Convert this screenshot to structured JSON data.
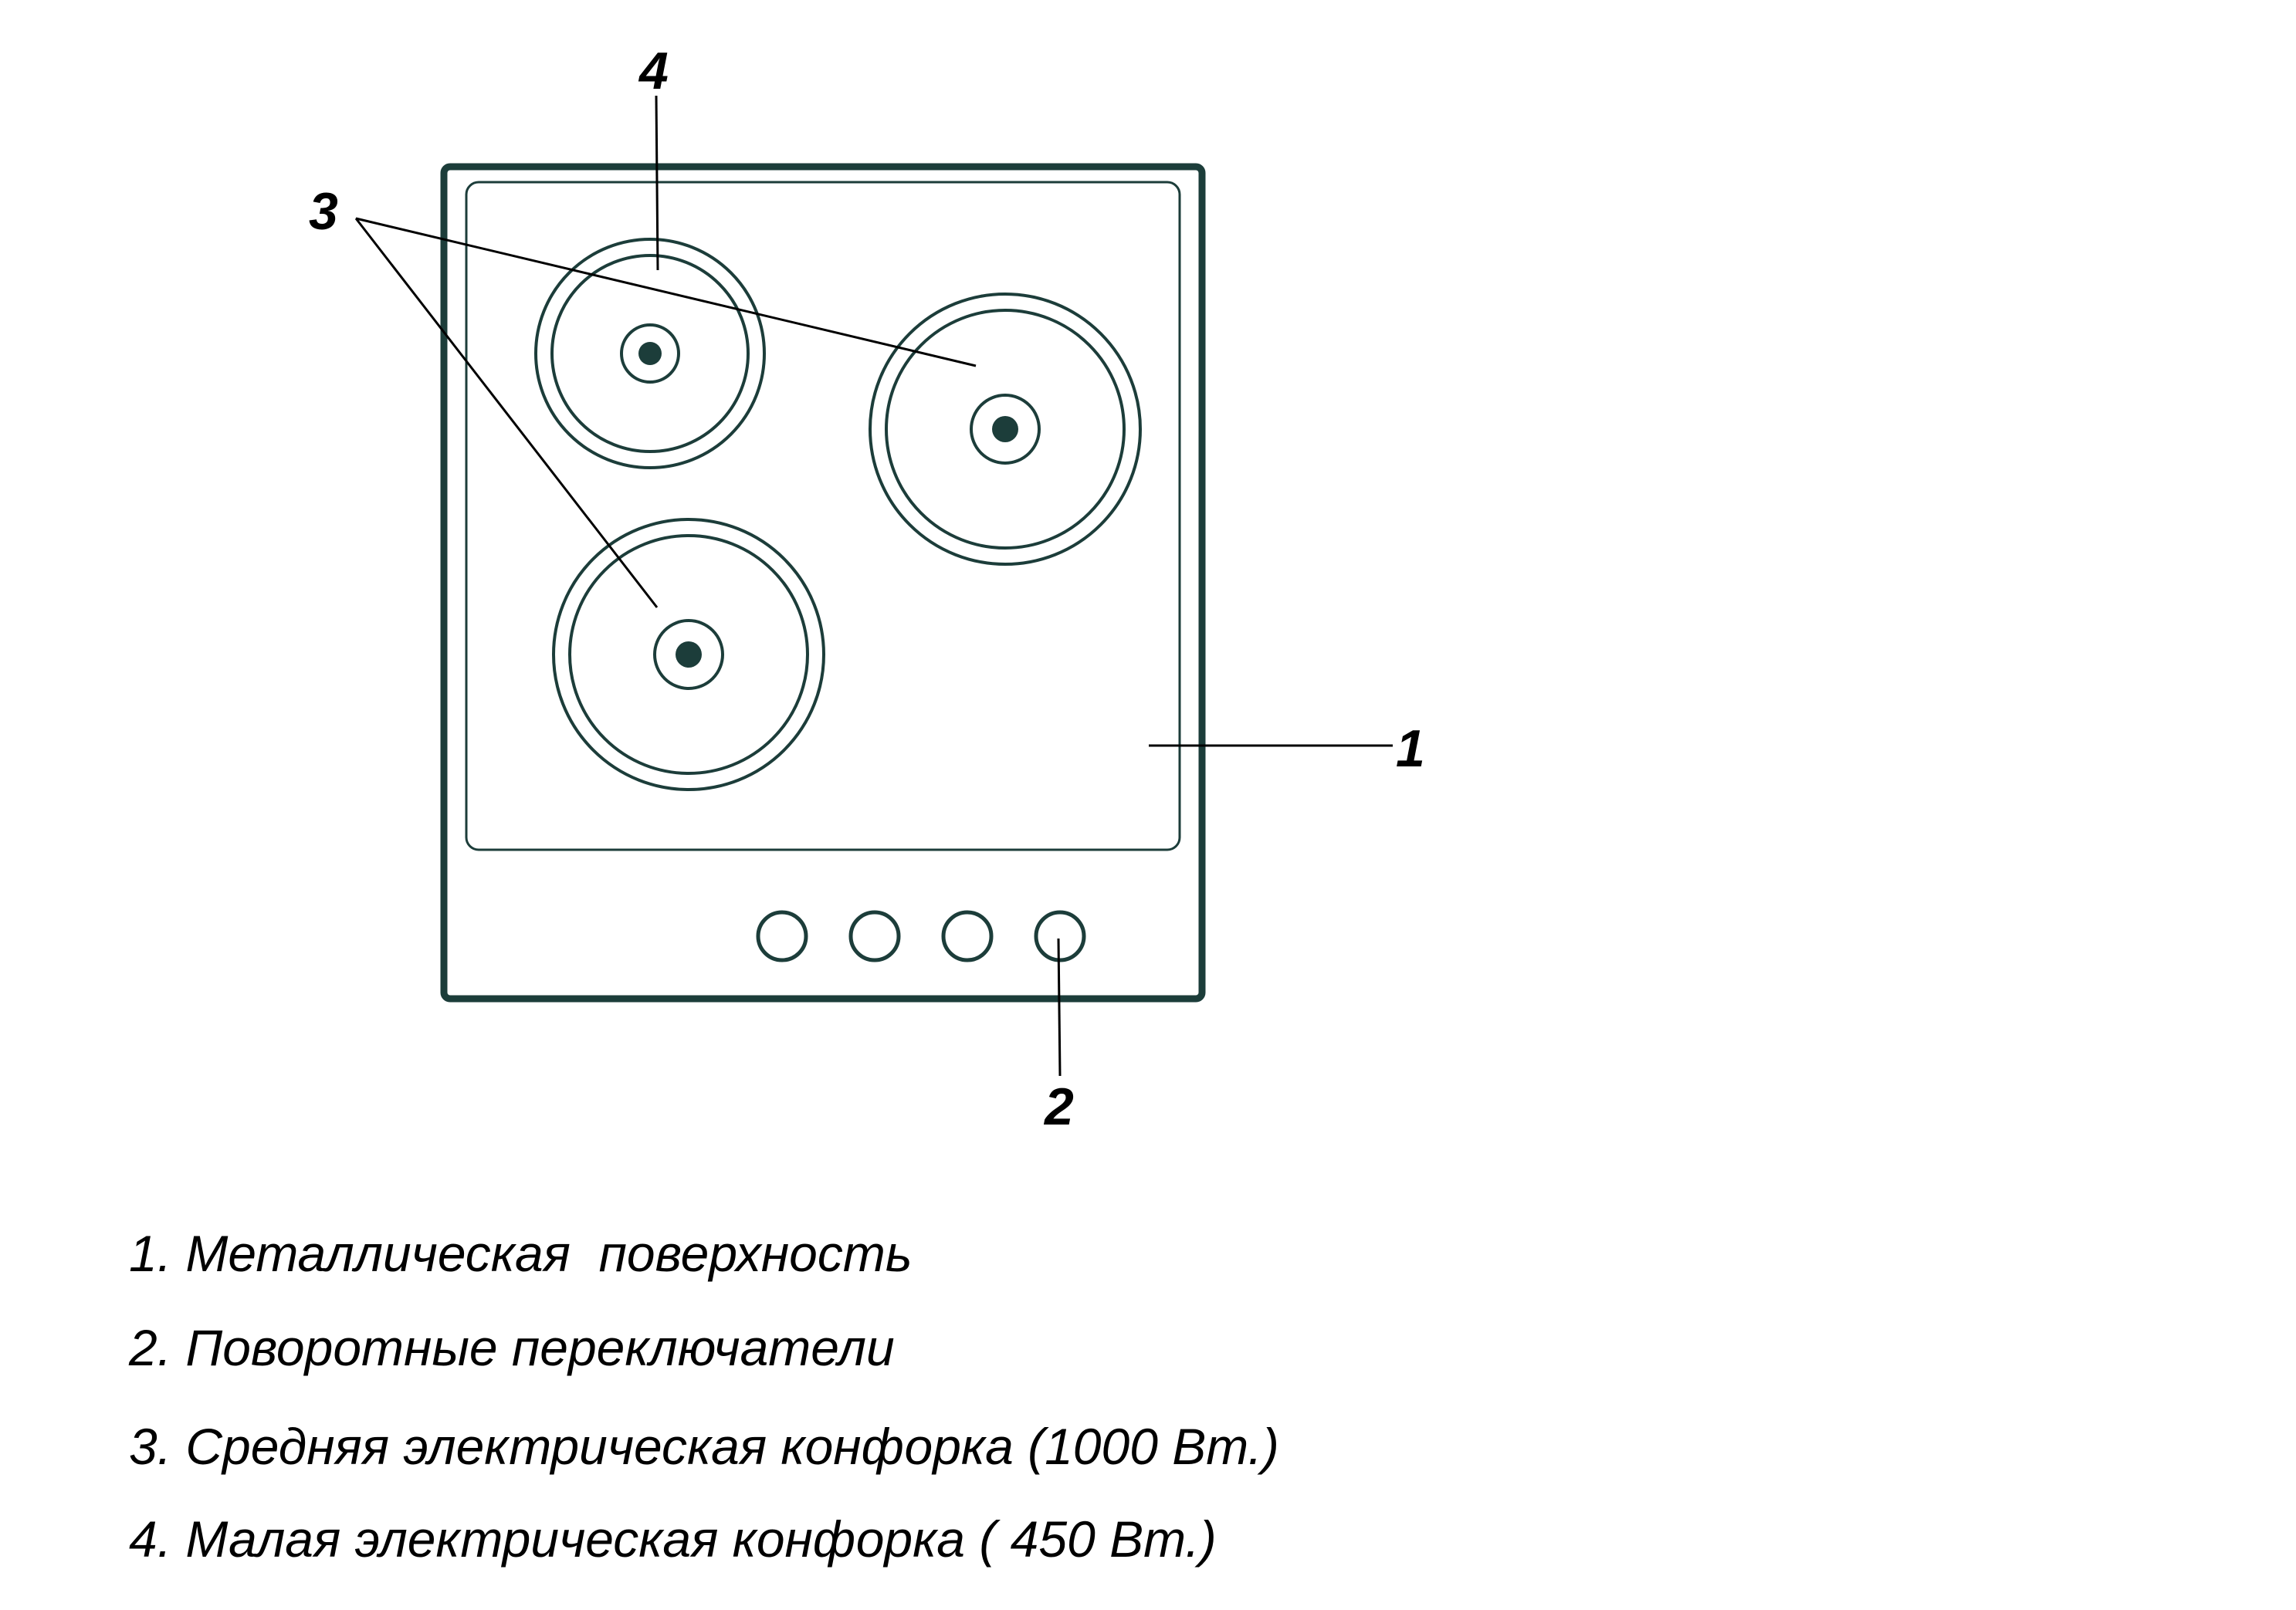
{
  "colors": {
    "outline": "#1c3d3a",
    "leader_line": "#000000",
    "text": "#000000"
  },
  "callouts": {
    "surface": "1",
    "knobs": "2",
    "medium_burner": "3",
    "small_burner": "4"
  },
  "legend": [
    "1. Металлическая  поверхность",
    "2. Поворотные переключатели",
    "3. Средняя электрическая конфорка (1000 Вт.)",
    "4. Малая электрическая конфорка ( 450 Вт.)"
  ]
}
